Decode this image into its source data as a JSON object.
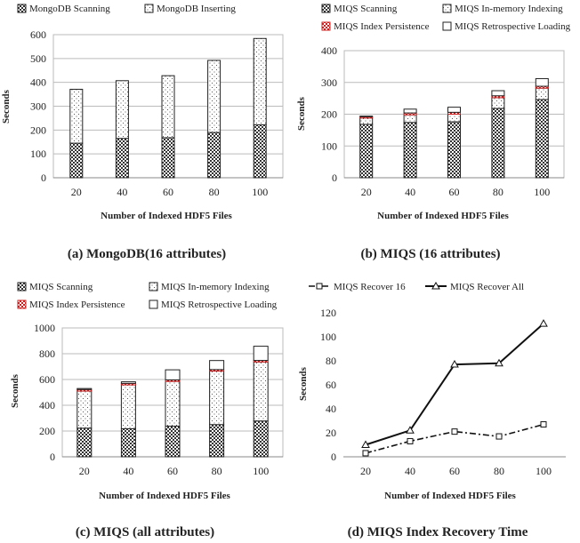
{
  "chart_data": [
    {
      "id": "a",
      "type": "bar",
      "stacked": true,
      "caption": "(a) MongoDB(16 attributes)",
      "xlabel": "Number of Indexed HDF5 Files",
      "ylabel": "Seconds",
      "categories": [
        "20",
        "40",
        "60",
        "80",
        "100"
      ],
      "ylim": [
        0,
        600
      ],
      "yticks": [
        "0",
        "100",
        "200",
        "300",
        "400",
        "500",
        "600"
      ],
      "grid": true,
      "series": [
        {
          "name": "MongoDB Scanning",
          "pattern": "dense",
          "values": [
            145,
            165,
            168,
            190,
            222
          ]
        },
        {
          "name": "MongoDB Inserting",
          "pattern": "dots",
          "values": [
            226,
            242,
            260,
            302,
            362
          ]
        }
      ]
    },
    {
      "id": "b",
      "type": "bar",
      "stacked": true,
      "caption": "(b) MIQS (16 attributes)",
      "xlabel": "Number of Indexed HDF5 Files",
      "ylabel": "Seconds",
      "categories": [
        "20",
        "40",
        "60",
        "80",
        "100"
      ],
      "ylim": [
        0,
        400
      ],
      "yticks": [
        "0",
        "100",
        "200",
        "300",
        "400"
      ],
      "grid": true,
      "series": [
        {
          "name": "MIQS Scanning",
          "pattern": "dense",
          "values": [
            168,
            174,
            176,
            218,
            246
          ]
        },
        {
          "name": "MIQS In-memory Indexing",
          "pattern": "dots",
          "values": [
            20,
            24,
            24,
            34,
            36
          ]
        },
        {
          "name": "MIQS Index Persistence",
          "pattern": "red",
          "values": [
            4,
            6,
            6,
            6,
            6
          ]
        },
        {
          "name": "MIQS Retrospective Loading",
          "pattern": "white",
          "values": [
            2,
            12,
            16,
            16,
            24
          ]
        }
      ]
    },
    {
      "id": "c",
      "type": "bar",
      "stacked": true,
      "caption": "(c) MIQS (all attributes)",
      "xlabel": "Number of Indexed HDF5 Files",
      "ylabel": "Seconds",
      "categories": [
        "20",
        "40",
        "60",
        "80",
        "100"
      ],
      "ylim": [
        0,
        1000
      ],
      "yticks": [
        "0",
        "200",
        "400",
        "600",
        "800",
        "1000"
      ],
      "grid": true,
      "series": [
        {
          "name": "MIQS Scanning",
          "pattern": "dense",
          "values": [
            222,
            218,
            238,
            250,
            278
          ]
        },
        {
          "name": "MIQS In-memory Indexing",
          "pattern": "dots",
          "values": [
            288,
            340,
            347,
            415,
            458
          ]
        },
        {
          "name": "MIQS Index Persistence",
          "pattern": "red",
          "values": [
            12,
            12,
            12,
            12,
            12
          ]
        },
        {
          "name": "MIQS Retrospective Loading",
          "pattern": "white",
          "values": [
            8,
            12,
            78,
            70,
            110
          ]
        }
      ]
    },
    {
      "id": "d",
      "type": "line",
      "caption": "(d) MIQS Index Recovery Time",
      "xlabel": "Number of Indexed HDF5 Files",
      "ylabel": "Seconds",
      "categories": [
        "20",
        "40",
        "60",
        "80",
        "100"
      ],
      "ylim": [
        0,
        120
      ],
      "yticks": [
        "0",
        "20",
        "40",
        "60",
        "80",
        "100",
        "120"
      ],
      "grid": false,
      "series": [
        {
          "name": "MIQS Recover 16",
          "style": "dashdot",
          "marker": "square",
          "values": [
            3,
            13,
            21,
            17,
            27
          ]
        },
        {
          "name": "MIQS Recover All",
          "style": "solid",
          "marker": "triangle",
          "values": [
            10,
            22,
            77,
            78,
            111
          ]
        }
      ]
    }
  ]
}
